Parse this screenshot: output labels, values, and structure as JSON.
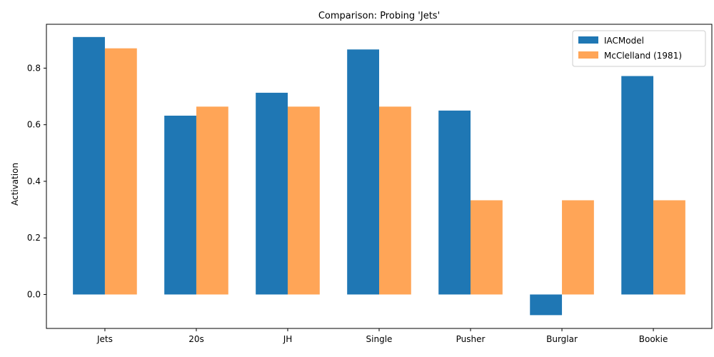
{
  "chart_data": {
    "type": "bar",
    "title": "Comparison: Probing 'Jets'",
    "xlabel": "",
    "ylabel": "Activation",
    "categories": [
      "Jets",
      "20s",
      "JH",
      "Single",
      "Pusher",
      "Burglar",
      "Bookie"
    ],
    "series": [
      {
        "name": "IACModel",
        "color": "#1f77b4",
        "values": [
          0.91,
          0.632,
          0.713,
          0.866,
          0.65,
          -0.073,
          0.772
        ]
      },
      {
        "name": "McClelland (1981)",
        "color": "#ffa557",
        "values": [
          0.87,
          0.664,
          0.664,
          0.664,
          0.333,
          0.333,
          0.333
        ]
      }
    ],
    "ylim": [
      -0.12,
      0.955
    ],
    "yticks": [
      0.0,
      0.2,
      0.4,
      0.6,
      0.8
    ],
    "ytick_labels": [
      "0.0",
      "0.2",
      "0.4",
      "0.6",
      "0.8"
    ],
    "grid": false,
    "legend_position": "top-right"
  }
}
